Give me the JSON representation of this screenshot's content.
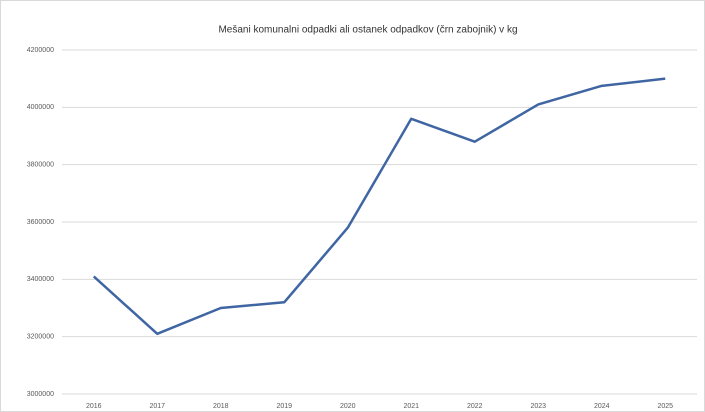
{
  "chart_data": {
    "type": "line",
    "title": "Mešani komunalni odpadki ali ostanek odpadkov (črn zabojnik) v kg",
    "categories": [
      "2016",
      "2017",
      "2018",
      "2019",
      "2020",
      "2021",
      "2022",
      "2023",
      "2024",
      "2025"
    ],
    "series": [
      {
        "name": "Mešani komunalni odpadki",
        "color": "#3f66a3",
        "values": [
          3410000,
          3210000,
          3300000,
          3320000,
          3580000,
          3960000,
          3880000,
          4010000,
          4075000,
          4100000
        ]
      }
    ],
    "ylim": [
      3000000,
      4200000
    ],
    "yticks": [
      3000000,
      3200000,
      3400000,
      3600000,
      3800000,
      4000000,
      4200000
    ],
    "grid": true
  }
}
